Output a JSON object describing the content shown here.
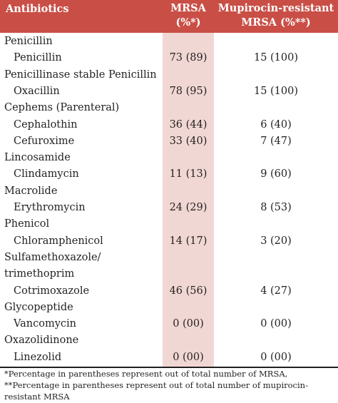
{
  "header": {
    "antibiotics": "Antibiotics",
    "mrsa_line1": "MRSA",
    "mrsa_line2": "(%*)",
    "mup_line1": "Mupirocin-resistant",
    "mup_line2": "MRSA (%**)"
  },
  "rows": [
    {
      "type": "category",
      "name": "Penicillin"
    },
    {
      "type": "drug",
      "name": "Penicillin",
      "mrsa": "73 (89)",
      "mup": "15 (100)"
    },
    {
      "type": "category",
      "name": "Penicillinase stable Penicillin"
    },
    {
      "type": "drug",
      "name": "Oxacillin",
      "mrsa": "78 (95)",
      "mup": "15 (100)"
    },
    {
      "type": "category",
      "name": "Cephems (Parenteral)"
    },
    {
      "type": "drug",
      "name": "Cephalothin",
      "mrsa": "36 (44)",
      "mup": "6 (40)"
    },
    {
      "type": "drug",
      "name": "Cefuroxime",
      "mrsa": "33 (40)",
      "mup": "7 (47)"
    },
    {
      "type": "category",
      "name": "Lincosamide"
    },
    {
      "type": "drug",
      "name": "Clindamycin",
      "mrsa": "11 (13)",
      "mup": "9 (60)"
    },
    {
      "type": "category",
      "name": "Macrolide"
    },
    {
      "type": "drug",
      "name": "Erythromycin",
      "mrsa": "24 (29)",
      "mup": "8 (53)"
    },
    {
      "type": "category",
      "name": "Phenicol"
    },
    {
      "type": "drug",
      "name": "Chloramphenicol",
      "mrsa": "14 (17)",
      "mup": "3 (20)"
    },
    {
      "type": "category",
      "name": "Sulfamethoxazole/"
    },
    {
      "type": "category",
      "name": "trimethoprim"
    },
    {
      "type": "drug",
      "name": "Cotrimoxazole",
      "mrsa": "46 (56)",
      "mup": "4 (27)"
    },
    {
      "type": "category",
      "name": "Glycopeptide"
    },
    {
      "type": "drug",
      "name": "Vancomycin",
      "mrsa": "0 (00)",
      "mup": "0 (00)"
    },
    {
      "type": "category",
      "name": "Oxazolidinone"
    },
    {
      "type": "drug",
      "name": "Linezolid",
      "mrsa": "0 (00)",
      "mup": "0 (00)"
    }
  ],
  "footnotes": {
    "line1": "*Percentage in parentheses represent out of total number of MRSA,",
    "line2": "**Percentage in parentheses represent out of total number of mupirocin-",
    "line3": "resistant MRSA"
  },
  "colors": {
    "header_bg": "#c94f46",
    "highlight_col": "#f1d7d3",
    "text": "#231f20"
  }
}
